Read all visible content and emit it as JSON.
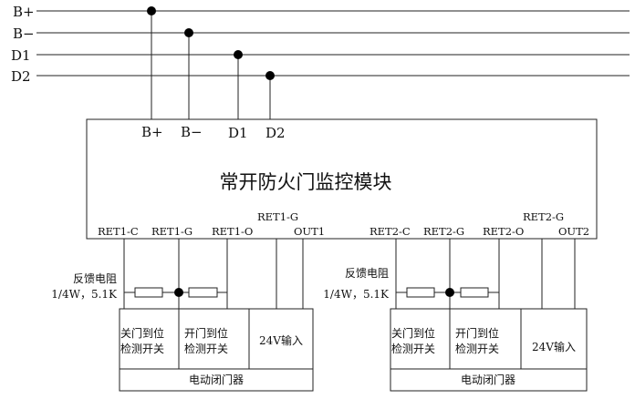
{
  "bus": {
    "lines": [
      {
        "label": "B+"
      },
      {
        "label": "B−"
      },
      {
        "label": "D1"
      },
      {
        "label": "D2"
      }
    ]
  },
  "module": {
    "title": "常开防火门监控模块",
    "bus_terminals": [
      "B+",
      "B−",
      "D1",
      "D2"
    ]
  },
  "groups": [
    {
      "terminals": {
        "c": "RET1-C",
        "g": "RET1-G",
        "o": "RET1-O",
        "g2": "RET1-G",
        "out": "OUT1"
      },
      "resistor_label": "反馈电阻",
      "resistor_value": "1/4W，5.1K",
      "device": {
        "close_switch": [
          "关门到位",
          "检测开关"
        ],
        "open_switch": [
          "开门到位",
          "检测开关"
        ],
        "power": "24V输入",
        "name": "电动闭门器"
      }
    },
    {
      "terminals": {
        "c": "RET2-C",
        "g": "RET2-G",
        "o": "RET2-O",
        "g2": "RET2-G",
        "out": "OUT2"
      },
      "resistor_label": "反馈电阻",
      "resistor_value": "1/4W，5.1K",
      "device": {
        "close_switch": [
          "关门到位",
          "检测开关"
        ],
        "open_switch": [
          "开门到位",
          "检测开关"
        ],
        "power": "24V输入",
        "name": "电动闭门器"
      }
    }
  ]
}
